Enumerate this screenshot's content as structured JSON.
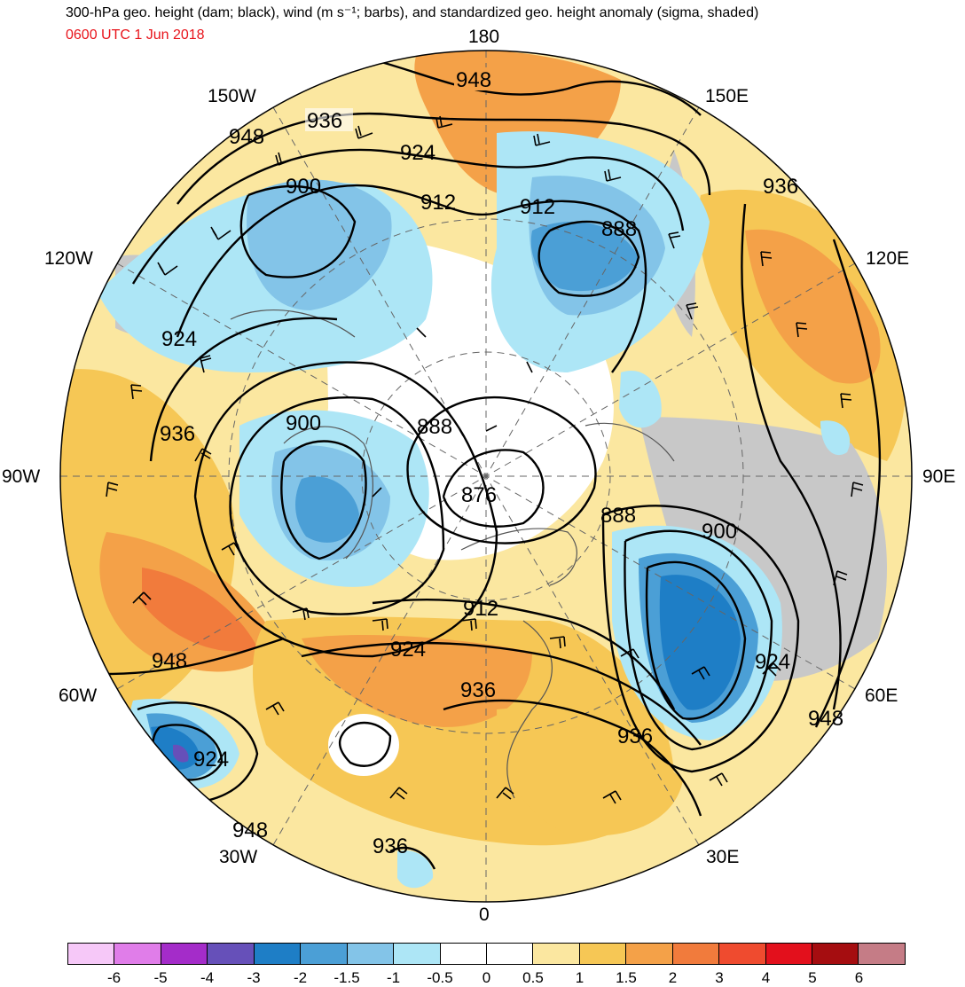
{
  "title": "300-hPa geo. height (dam; black), wind (m s⁻¹; barbs), and standardized geo. height anomaly (sigma, shaded)",
  "valid_time": "0600 UTC 1 Jun 2018",
  "projection": "north polar stereographic",
  "variables": {
    "contours": "300-hPa geopotential height (dam)",
    "barbs": "wind (m s-1)",
    "shading": "standardized geopotential height anomaly (sigma)"
  },
  "longitude_labels": {
    "top": "180",
    "bottom": "0",
    "left": "90W",
    "right": "90E",
    "upper_left": "150W",
    "upper_right": "150E",
    "mid_upper_left": "120W",
    "mid_upper_right": "120E",
    "lower_left": "60W",
    "lower_right": "60E",
    "bottom_left": "30W",
    "bottom_right": "30E"
  },
  "contour_labels": [
    {
      "text": "948",
      "region": "near 180"
    },
    {
      "text": "936",
      "region": "150W"
    },
    {
      "text": "948",
      "region": "150W outer"
    },
    {
      "text": "924",
      "region": "north pacific"
    },
    {
      "text": "912",
      "region": "bering"
    },
    {
      "text": "912",
      "region": "east siberia"
    },
    {
      "text": "888",
      "region": "east siberia low"
    },
    {
      "text": "936",
      "region": "near 150E-120E"
    },
    {
      "text": "900",
      "region": "alaska low"
    },
    {
      "text": "924",
      "region": "western canada"
    },
    {
      "text": "936",
      "region": "north america"
    },
    {
      "text": "900",
      "region": "hudson bay"
    },
    {
      "text": "888",
      "region": "arctic"
    },
    {
      "text": "876",
      "region": "pole"
    },
    {
      "text": "888",
      "region": "kara sea"
    },
    {
      "text": "900",
      "region": "west siberia"
    },
    {
      "text": "912",
      "region": "greenland"
    },
    {
      "text": "924",
      "region": "north atlantic"
    },
    {
      "text": "924",
      "region": "west siberia ridge"
    },
    {
      "text": "948",
      "region": "eastern north america"
    },
    {
      "text": "936",
      "region": "europe"
    },
    {
      "text": "936",
      "region": "eastern europe"
    },
    {
      "text": "948",
      "region": "central asia"
    },
    {
      "text": "924",
      "region": "atlantic low"
    },
    {
      "text": "948",
      "region": "mid atlantic"
    },
    {
      "text": "936",
      "region": "iberia"
    }
  ],
  "colorbar": {
    "ticks": [
      "-6",
      "-5",
      "-4",
      "-3",
      "-2",
      "-1.5",
      "-1",
      "-0.5",
      "0",
      "0.5",
      "1",
      "1.5",
      "2",
      "3",
      "4",
      "5",
      "6"
    ],
    "colors": [
      "#f6c8f8",
      "#e07de9",
      "#a42cc9",
      "#6650b9",
      "#1e7ec6",
      "#4b9fd6",
      "#83c4e8",
      "#ade6f6",
      "#ffffff",
      "#ffffff",
      "#fbe7a0",
      "#f6c755",
      "#f4a148",
      "#f17b3c",
      "#ef4b2f",
      "#e3101c",
      "#a50d10",
      "#c57c86"
    ]
  }
}
